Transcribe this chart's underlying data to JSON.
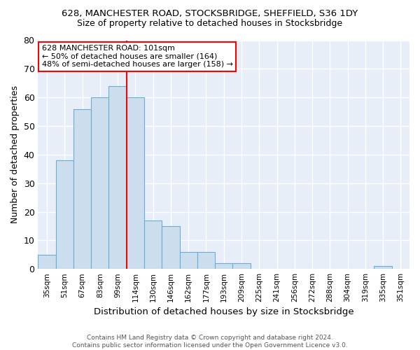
{
  "title_line1": "628, MANCHESTER ROAD, STOCKSBRIDGE, SHEFFIELD, S36 1DY",
  "title_line2": "Size of property relative to detached houses in Stocksbridge",
  "xlabel": "Distribution of detached houses by size in Stocksbridge",
  "ylabel": "Number of detached properties",
  "footnote": "Contains HM Land Registry data © Crown copyright and database right 2024.\nContains public sector information licensed under the Open Government Licence v3.0.",
  "categories": [
    "35sqm",
    "51sqm",
    "67sqm",
    "83sqm",
    "99sqm",
    "114sqm",
    "130sqm",
    "146sqm",
    "162sqm",
    "177sqm",
    "193sqm",
    "209sqm",
    "225sqm",
    "241sqm",
    "256sqm",
    "272sqm",
    "288sqm",
    "304sqm",
    "319sqm",
    "335sqm",
    "351sqm"
  ],
  "values": [
    5,
    38,
    56,
    60,
    64,
    60,
    17,
    15,
    6,
    6,
    2,
    2,
    0,
    0,
    0,
    0,
    0,
    0,
    0,
    1,
    0
  ],
  "bar_color": "#ccdded",
  "bar_edge_color": "#6aaed6",
  "vline_x": 4.5,
  "vline_color": "red",
  "annotation_text": "628 MANCHESTER ROAD: 101sqm\n← 50% of detached houses are smaller (164)\n48% of semi-detached houses are larger (158) →",
  "annotation_box_color": "white",
  "annotation_box_edge_color": "red",
  "ylim": [
    0,
    80
  ],
  "yticks": [
    0,
    10,
    20,
    30,
    40,
    50,
    60,
    70,
    80
  ],
  "background_color": "#e8eef8",
  "grid_color": "white"
}
